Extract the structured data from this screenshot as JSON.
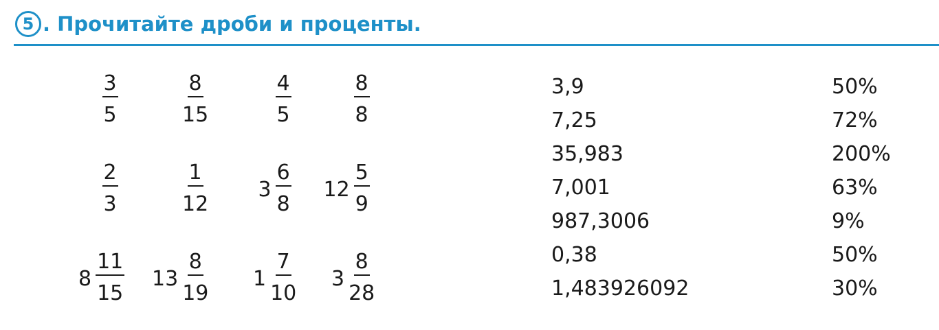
{
  "header": {
    "number": "5",
    "title": ". Прочитайте дроби и проценты."
  },
  "fractions": [
    {
      "whole": "",
      "num": "3",
      "den": "5"
    },
    {
      "whole": "",
      "num": "8",
      "den": "15"
    },
    {
      "whole": "",
      "num": "4",
      "den": "5"
    },
    {
      "whole": "",
      "num": "8",
      "den": "8"
    },
    {
      "whole": "",
      "num": "2",
      "den": "3"
    },
    {
      "whole": "",
      "num": "1",
      "den": "12"
    },
    {
      "whole": "3",
      "num": "6",
      "den": "8"
    },
    {
      "whole": "12",
      "num": "5",
      "den": "9"
    },
    {
      "whole": "8",
      "num": "11",
      "den": "15"
    },
    {
      "whole": "13",
      "num": "8",
      "den": "19"
    },
    {
      "whole": "1",
      "num": "7",
      "den": "10"
    },
    {
      "whole": "3",
      "num": "8",
      "den": "28"
    }
  ],
  "decimals": [
    "3,9",
    "7,25",
    "35,983",
    "7,001",
    "987,3006",
    "0,38",
    "1,483926092"
  ],
  "percents": [
    "50%",
    "72%",
    "200%",
    "63%",
    "9%",
    "50%",
    "30%"
  ]
}
